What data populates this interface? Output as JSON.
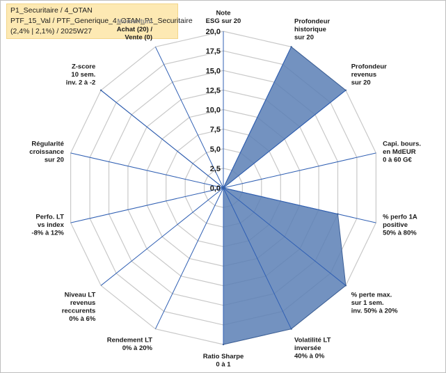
{
  "header": {
    "line1": "P1_Securitaire / 4_OTAN",
    "line2": "PTF_15_Val / PTF_Generique_4_OTAN_P1_Securitaire",
    "line3": "(2,4% | 2,1%) / 2025W27"
  },
  "chart_data": {
    "type": "radar",
    "rmax": 20,
    "ticks": [
      "0,0",
      "2,5",
      "5,0",
      "7,5",
      "10,0",
      "12,5",
      "15,0",
      "17,5",
      "20,0"
    ],
    "grid": true,
    "fill_color": "#5b7fb5",
    "line_color": "#3b5f97",
    "axes": [
      {
        "lines": [
          "Note",
          "ESG sur 20"
        ],
        "value": 0
      },
      {
        "lines": [
          "Profondeur",
          "historique",
          "sur 20"
        ],
        "value": 20
      },
      {
        "lines": [
          "Profondeur",
          "revenus",
          "sur 20"
        ],
        "value": 20
      },
      {
        "lines": [
          "Capi. bours.",
          "en MdEUR",
          "0 à 60 G€"
        ],
        "value": 0
      },
      {
        "lines": [
          "% perfo 1A",
          "positive",
          "50% à 80%"
        ],
        "value": 15
      },
      {
        "lines": [
          "% perte max.",
          "sur 1 sem.",
          "inv. 50% à 20%"
        ],
        "value": 20
      },
      {
        "lines": [
          "Volatilité LT",
          "inversée",
          "40% à 0%"
        ],
        "value": 20
      },
      {
        "lines": [
          "Ratio Sharpe",
          "0 à 1"
        ],
        "value": 20
      },
      {
        "lines": [
          "Rendement LT",
          "0% à 20%"
        ],
        "value": 0
      },
      {
        "lines": [
          "Niveau LT",
          "revenus",
          "reccurents",
          "0% à 6%"
        ],
        "value": 0
      },
      {
        "lines": [
          "Perfo. LT",
          "vs index",
          "-8% à 12%"
        ],
        "value": 0
      },
      {
        "lines": [
          "Régularité",
          "croissance",
          "sur 20"
        ],
        "value": 0
      },
      {
        "lines": [
          "Z-score",
          "10 sem.",
          "inv. 2 à -2"
        ],
        "value": 20
      },
      {
        "lines": [
          "Momentum",
          "Achat (20) /",
          "Vente (0)"
        ],
        "value": 0,
        "muted_first_line": true
      }
    ]
  }
}
